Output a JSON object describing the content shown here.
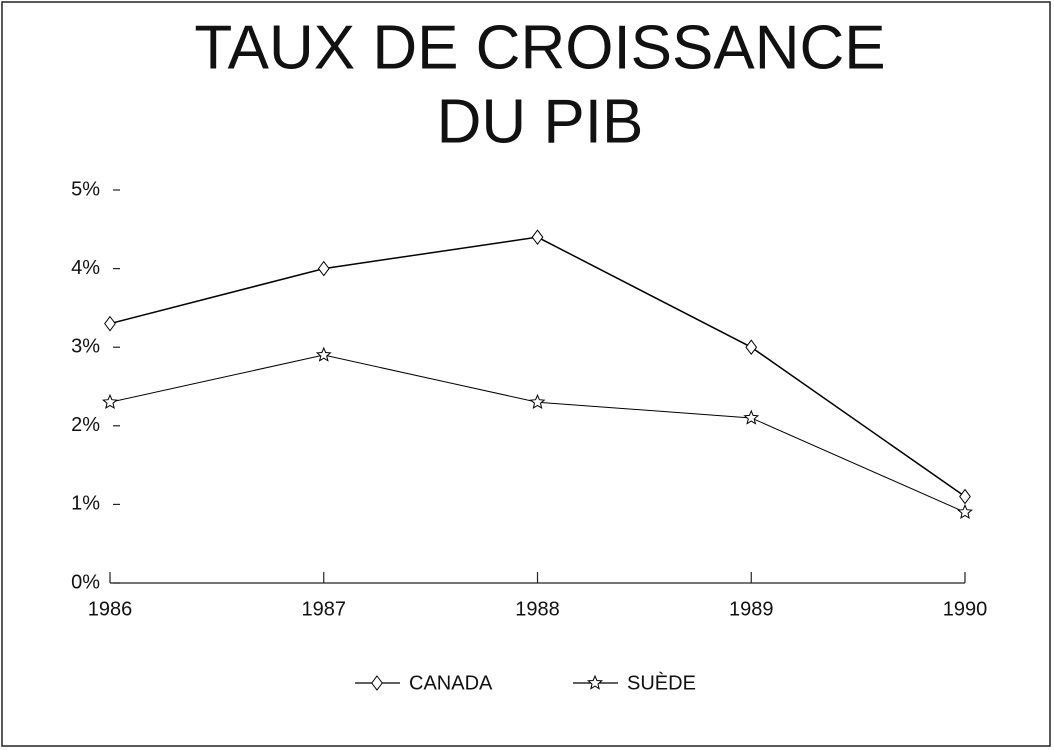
{
  "chart_data": {
    "type": "line",
    "title": [
      "TAUX DE CROISSANCE",
      "DU PIB"
    ],
    "categories": [
      "1986",
      "1987",
      "1988",
      "1989",
      "1990"
    ],
    "series": [
      {
        "name": "CANADA",
        "color": "#000000",
        "marker": "diamond",
        "values": [
          3.3,
          4.0,
          4.4,
          3.0,
          1.1
        ]
      },
      {
        "name": "SUÈDE",
        "color": "#000000",
        "marker": "star",
        "values": [
          2.3,
          2.9,
          2.3,
          2.1,
          0.9
        ]
      }
    ],
    "ylim": [
      0,
      5
    ],
    "yticks": [
      {
        "value": 0,
        "label": "0%"
      },
      {
        "value": 1,
        "label": "1%"
      },
      {
        "value": 2,
        "label": "2%"
      },
      {
        "value": 3,
        "label": "3%"
      },
      {
        "value": 4,
        "label": "4%"
      },
      {
        "value": 5,
        "label": "5%"
      }
    ],
    "legend": "bottom"
  }
}
